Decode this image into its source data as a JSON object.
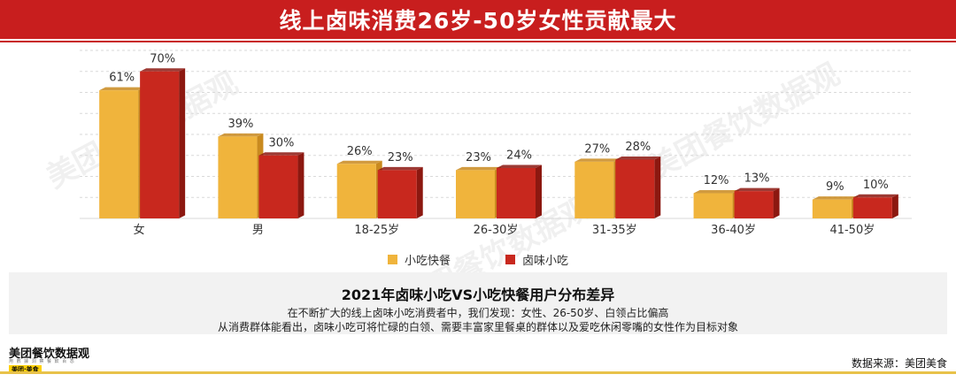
{
  "title": "线上卤味消费26岁-50岁女性贡献最大",
  "colors": {
    "title_bg": "#c81e1e",
    "series1": "#f0b43c",
    "series2": "#c8281e",
    "accent_line": "#e8c24a"
  },
  "chart_data": {
    "type": "bar",
    "categories": [
      "女",
      "男",
      "18-25岁",
      "26-30岁",
      "31-35岁",
      "36-40岁",
      "41-50岁"
    ],
    "series": [
      {
        "name": "小吃快餐",
        "values": [
          61,
          39,
          26,
          23,
          27,
          12,
          9
        ],
        "labels": [
          "61%",
          "39%",
          "26%",
          "23%",
          "27%",
          "12%",
          "9%"
        ]
      },
      {
        "name": "卤味小吃",
        "values": [
          70,
          30,
          23,
          24,
          28,
          13,
          10
        ],
        "labels": [
          "70%",
          "30%",
          "23%",
          "24%",
          "28%",
          "13%",
          "10%"
        ]
      }
    ],
    "ylim": [
      0,
      80
    ],
    "grid": true,
    "legend_position": "bottom"
  },
  "summary": {
    "title": "2021年卤味小吃VS小吃快餐用户分布差异",
    "line1": "在不断扩大的线上卤味小吃消费者中，我们发现：女性、26-50岁、白领占比偏高",
    "line2": "从消费群体能看出，卤味小吃可将忙碌的白领、需要丰富家里餐桌的群体以及爱吃休闲零嘴的女性作为目标对象"
  },
  "footer": {
    "brand": "美团餐饮数据观",
    "brand_sub": "用 數 據 洞 察 餐 飲 百 态",
    "logo_text": "美团·美食",
    "source": "数据来源：美团美食"
  },
  "watermark": "美团餐饮数据观"
}
